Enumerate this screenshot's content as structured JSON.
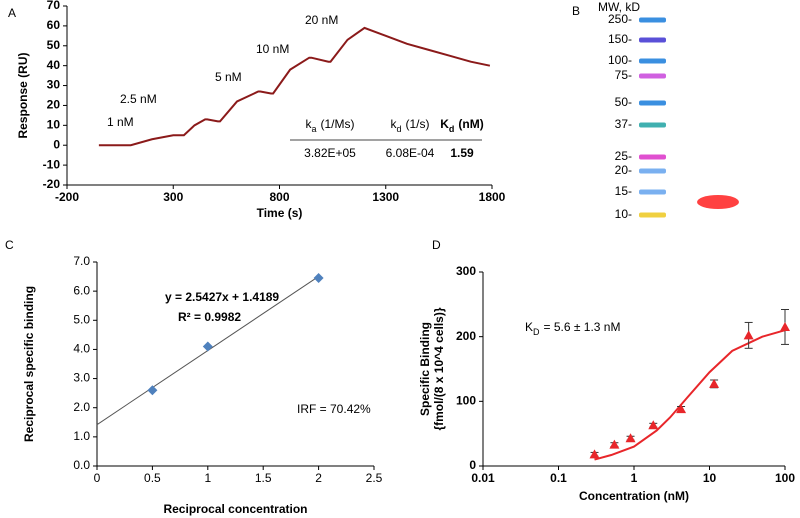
{
  "chart_data": [
    {
      "type": "line",
      "label": "A",
      "x": [
        -50,
        100,
        200,
        300,
        350,
        400,
        450,
        460,
        510,
        520,
        600,
        700,
        710,
        760,
        770,
        850,
        940,
        950,
        1030,
        1040,
        1120,
        1200,
        1300,
        1400,
        1500,
        1600,
        1700,
        1790
      ],
      "values": [
        0,
        0,
        3,
        5,
        5,
        10,
        13,
        13,
        12,
        12,
        22,
        27,
        27,
        26,
        26,
        38,
        44,
        44,
        42,
        42,
        53,
        59,
        55,
        51,
        48,
        45,
        42,
        40
      ],
      "color": "#8b1a1a",
      "xlim": [
        -200,
        1800
      ],
      "xticks": [
        -200,
        300,
        800,
        1300,
        1800
      ],
      "ylim": [
        -20,
        70
      ],
      "yticks": [
        -20,
        -10,
        0,
        10,
        20,
        30,
        40,
        50,
        60,
        70
      ],
      "xlabel": "Time (s)",
      "ylabel": "Response (RU)",
      "annotations": [
        "1 nM",
        "2.5 nM",
        "5 nM",
        "10 nM",
        "20 nM"
      ],
      "table": {
        "header": [
          {
            "symbol": "k",
            "sub": "a",
            "unit": "(1/Ms)"
          },
          {
            "symbol": "k",
            "sub": "d",
            "unit": "(1/s)"
          },
          {
            "symbol": "K",
            "sub": "d",
            "unit": "(nM)"
          }
        ],
        "rows": [
          [
            "3.82E+05",
            "6.08E-04",
            "1.59"
          ]
        ]
      }
    },
    {
      "type": "gel",
      "label": "B",
      "title": "MW, kD",
      "markers": [
        "250-",
        "150-",
        "100-",
        "75-",
        "50-",
        "37-",
        "25-",
        "20-",
        "15-",
        "10-"
      ]
    },
    {
      "type": "scatter",
      "label": "C",
      "x": [
        0.5,
        1,
        2
      ],
      "values": [
        2.6,
        4.1,
        6.45
      ],
      "color": "#4f81bd",
      "marker": "diamond",
      "trendline": {
        "slope": 2.5427,
        "intercept": 1.4189,
        "color": "#555555"
      },
      "xlim": [
        0,
        2.5
      ],
      "xticks": [
        0,
        0.5,
        1,
        1.5,
        2,
        2.5
      ],
      "ylim": [
        0,
        7
      ],
      "yticks": [
        {
          "value": 0,
          "label": "0.0"
        },
        {
          "value": 1,
          "label": "1.0"
        },
        {
          "value": 2,
          "label": "2.0"
        },
        {
          "value": 3,
          "label": "3.0"
        },
        {
          "value": 4,
          "label": "4.0"
        },
        {
          "value": 5,
          "label": "5.0"
        },
        {
          "value": 6,
          "label": "6.0"
        },
        {
          "value": 7,
          "label": "7.0"
        }
      ],
      "xlabel": "Reciprocal concentration",
      "ylabel": "Reciprocal specific binding",
      "annotations": [
        "y = 2.5427x + 1.4189",
        "R² = 0.9982",
        "IRF = 70.42%"
      ]
    },
    {
      "type": "scatter",
      "label": "D",
      "log_x": true,
      "x": [
        0.3,
        0.55,
        0.9,
        1.8,
        4.2,
        11.5,
        33,
        100
      ],
      "values": [
        18,
        33,
        43,
        63,
        88,
        127,
        202,
        215
      ],
      "errors": [
        3,
        3,
        3,
        3,
        4,
        6,
        20,
        27
      ],
      "color": "#e8262a",
      "marker": "triangle",
      "fit": {
        "x": [
          0.3,
          0.5,
          1,
          2,
          3,
          5,
          10,
          20,
          50,
          100
        ],
        "values": [
          10,
          17,
          30,
          55,
          75,
          105,
          145,
          178,
          200,
          210
        ]
      },
      "xlim": [
        0.01,
        100
      ],
      "xticks": [
        0.01,
        0.1,
        1,
        10,
        100
      ],
      "ylim": [
        0,
        300
      ],
      "yticks": [
        0,
        100,
        200,
        300
      ],
      "xlabel": "Concentration (nM)",
      "ylabel": [
        "Specific Binding",
        "{fmol/(8 x 10^4 cells)}"
      ],
      "annotations": [
        {
          "symbol": "K",
          "sub": "D",
          "text": "= 5.6 ± 1.3 nM"
        }
      ]
    }
  ]
}
